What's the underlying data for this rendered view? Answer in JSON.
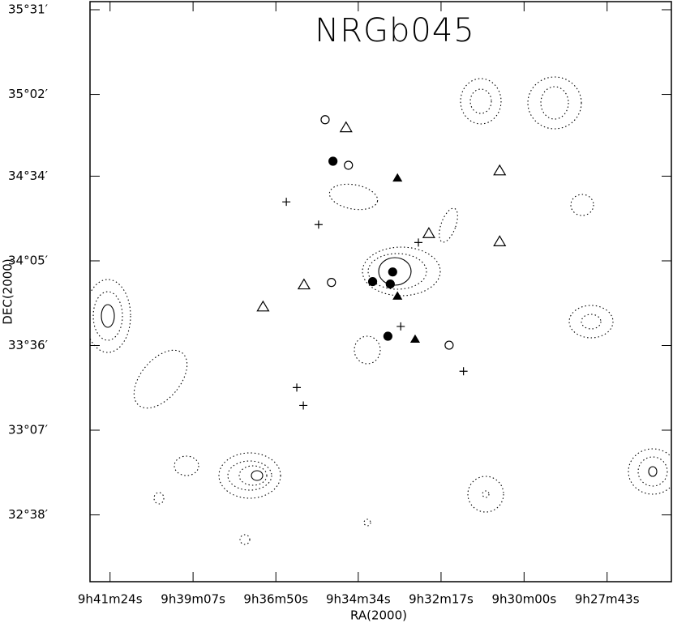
{
  "chart_data": {
    "type": "scatter",
    "title": "NRGb045",
    "x_label": "RA(2000)",
    "y_label": "DEC(2000)",
    "xlim": [
      9.6992,
      9.4324
    ],
    "ylim": [
      32.252,
      35.563
    ],
    "xticks": [
      {
        "value": 9.69,
        "label": "9h41m24s"
      },
      {
        "value": 9.6519,
        "label": "9h39m07s"
      },
      {
        "value": 9.6139,
        "label": "9h36m50s"
      },
      {
        "value": 9.5761,
        "label": "9h34m34s"
      },
      {
        "value": 9.5381,
        "label": "9h32m17s"
      },
      {
        "value": 9.5,
        "label": "9h30m00s"
      },
      {
        "value": 9.4619,
        "label": "9h27m43s"
      }
    ],
    "yticks": [
      {
        "value": 35.5167,
        "label": "35°31′"
      },
      {
        "value": 35.0333,
        "label": "35°02′"
      },
      {
        "value": 34.5667,
        "label": "34°34′"
      },
      {
        "value": 34.0833,
        "label": "34°05′"
      },
      {
        "value": 33.6,
        "label": "33°36′"
      },
      {
        "value": 33.1167,
        "label": "33°07′"
      },
      {
        "value": 32.6333,
        "label": "32°38′"
      }
    ],
    "series": [
      {
        "marker": "circle",
        "filled": true,
        "x": [
          9.5877,
          9.5603,
          9.5695,
          9.5614,
          9.5625
        ],
        "y": [
          34.652,
          34.02,
          33.965,
          33.951,
          33.653
        ]
      },
      {
        "marker": "circle",
        "filled": false,
        "x": [
          9.5913,
          9.5806,
          9.5884,
          9.5344
        ],
        "y": [
          34.889,
          34.629,
          33.96,
          33.602
        ]
      },
      {
        "marker": "triangle",
        "filled": false,
        "x": [
          9.5817,
          9.5112,
          9.5437,
          9.5112,
          9.601,
          9.6198
        ],
        "y": [
          34.843,
          34.597,
          34.239,
          34.192,
          33.946,
          33.82
        ]
      },
      {
        "marker": "triangle",
        "filled": true,
        "x": [
          9.5581,
          9.5581,
          9.55
        ],
        "y": [
          34.555,
          33.881,
          33.635
        ]
      },
      {
        "marker": "plus",
        "filled": false,
        "x": [
          9.6091,
          9.5943,
          9.5485,
          9.5566,
          9.6043,
          9.6013,
          9.5278
        ],
        "y": [
          34.42,
          34.29,
          34.188,
          33.709,
          33.36,
          33.258,
          33.453
        ]
      }
    ]
  }
}
